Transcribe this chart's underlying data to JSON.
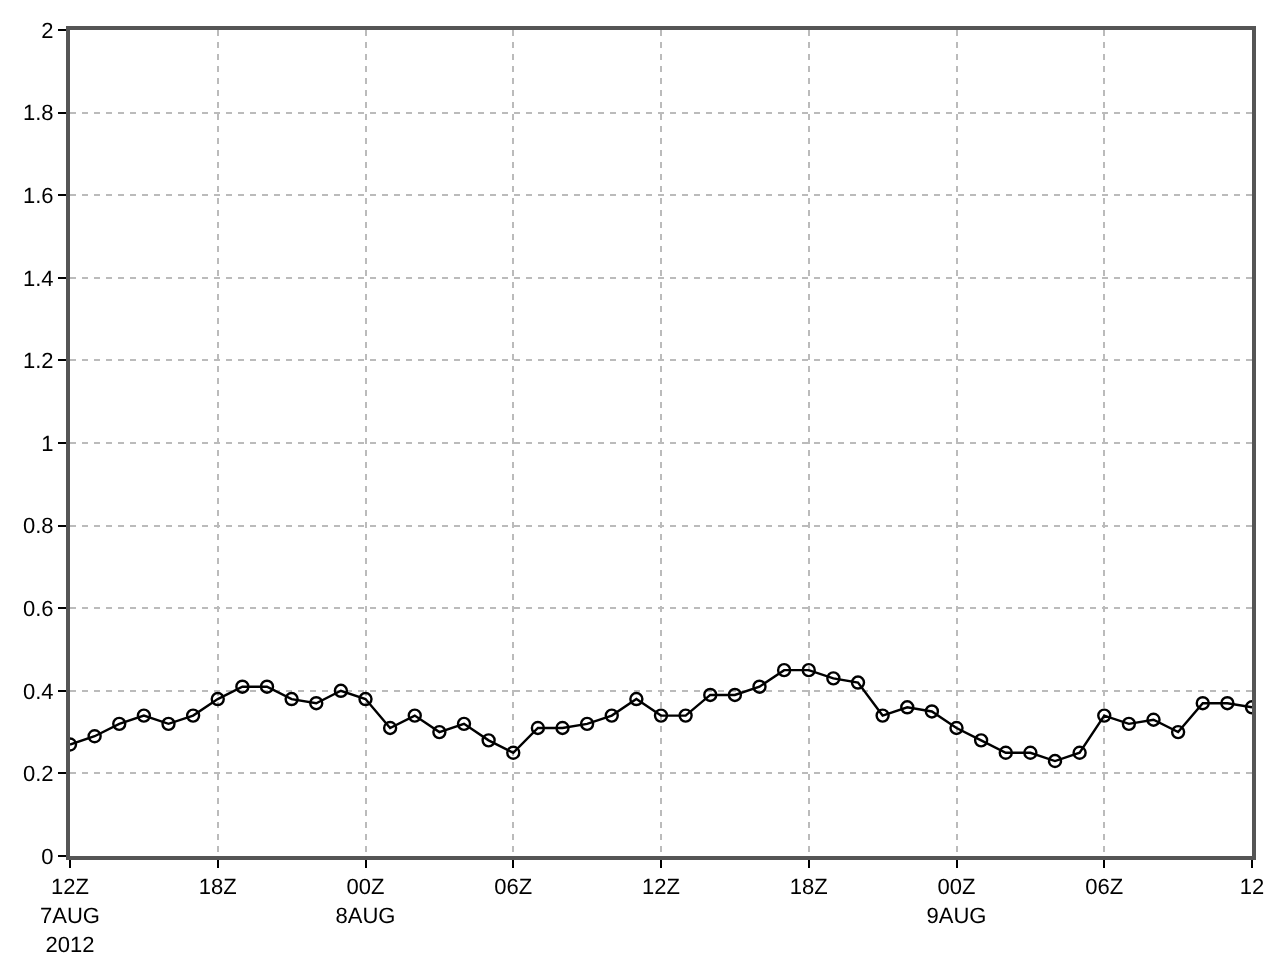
{
  "chart_data": {
    "type": "line",
    "x": [
      "2012-08-07T12:00",
      "2012-08-07T13:00",
      "2012-08-07T14:00",
      "2012-08-07T15:00",
      "2012-08-07T16:00",
      "2012-08-07T17:00",
      "2012-08-07T18:00",
      "2012-08-07T19:00",
      "2012-08-07T20:00",
      "2012-08-07T21:00",
      "2012-08-07T22:00",
      "2012-08-07T23:00",
      "2012-08-08T00:00",
      "2012-08-08T01:00",
      "2012-08-08T02:00",
      "2012-08-08T03:00",
      "2012-08-08T04:00",
      "2012-08-08T05:00",
      "2012-08-08T06:00",
      "2012-08-08T07:00",
      "2012-08-08T08:00",
      "2012-08-08T09:00",
      "2012-08-08T10:00",
      "2012-08-08T11:00",
      "2012-08-08T12:00",
      "2012-08-08T13:00",
      "2012-08-08T14:00",
      "2012-08-08T15:00",
      "2012-08-08T16:00",
      "2012-08-08T17:00",
      "2012-08-08T18:00",
      "2012-08-08T19:00",
      "2012-08-08T20:00",
      "2012-08-08T21:00",
      "2012-08-08T22:00",
      "2012-08-08T23:00",
      "2012-08-09T00:00",
      "2012-08-09T01:00",
      "2012-08-09T02:00",
      "2012-08-09T03:00",
      "2012-08-09T04:00",
      "2012-08-09T05:00",
      "2012-08-09T06:00",
      "2012-08-09T07:00",
      "2012-08-09T08:00",
      "2012-08-09T09:00",
      "2012-08-09T10:00",
      "2012-08-09T11:00",
      "2012-08-09T12:00"
    ],
    "series": [
      {
        "color": "#000000",
        "values": [
          0.27,
          0.29,
          0.32,
          0.34,
          0.32,
          0.34,
          0.38,
          0.41,
          0.41,
          0.38,
          0.37,
          0.4,
          0.38,
          0.31,
          0.34,
          0.3,
          0.32,
          0.28,
          0.25,
          0.31,
          0.31,
          0.32,
          0.34,
          0.38,
          0.34,
          0.34,
          0.39,
          0.39,
          0.41,
          0.45,
          0.45,
          0.43,
          0.42,
          0.34,
          0.36,
          0.35,
          0.31,
          0.28,
          0.25,
          0.25,
          0.23,
          0.25,
          0.34,
          0.32,
          0.33,
          0.3,
          0.37,
          0.37,
          0.36
        ]
      }
    ],
    "xlim": [
      "2012-08-07T12:00",
      "2012-08-09T12:00"
    ],
    "xticks": [
      {
        "value": "2012-08-07T12:00",
        "label": "12Z\n7AUG\n2012"
      },
      {
        "value": "2012-08-07T18:00",
        "label": "18Z"
      },
      {
        "value": "2012-08-08T00:00",
        "label": "00Z\n8AUG"
      },
      {
        "value": "2012-08-08T06:00",
        "label": "06Z"
      },
      {
        "value": "2012-08-08T12:00",
        "label": "12Z"
      },
      {
        "value": "2012-08-08T18:00",
        "label": "18Z"
      },
      {
        "value": "2012-08-09T00:00",
        "label": "00Z\n9AUG"
      },
      {
        "value": "2012-08-09T06:00",
        "label": "06Z"
      },
      {
        "value": "2012-08-09T12:00",
        "label": "12"
      }
    ],
    "ylim": [
      0,
      2
    ],
    "yticks": [
      0,
      0.2,
      0.4,
      0.6,
      0.8,
      1,
      1.2,
      1.4,
      1.6,
      1.8,
      2
    ],
    "grid": true,
    "marker": "circle",
    "line_style": "solid"
  }
}
